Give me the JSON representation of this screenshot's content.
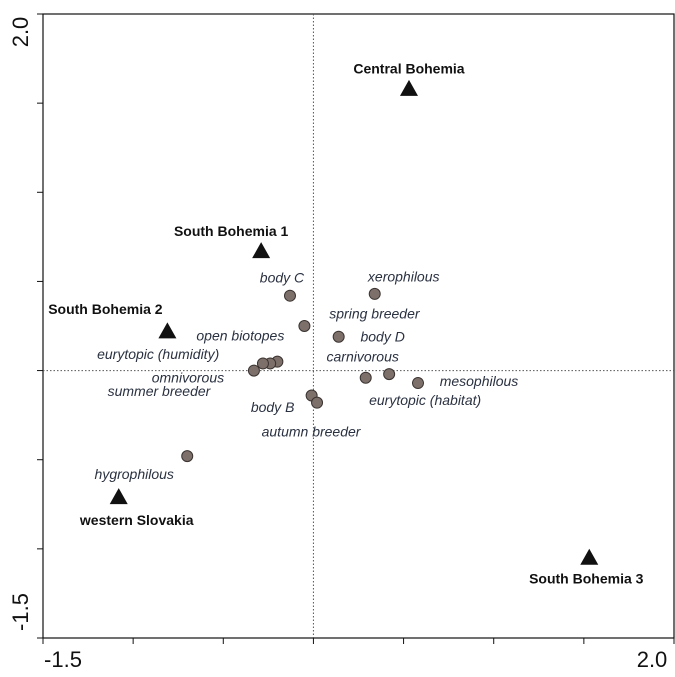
{
  "chart_data": {
    "type": "scatter",
    "xlim": [
      -1.5,
      2
    ],
    "ylim": [
      -1.5,
      2
    ],
    "xticks": [
      -1.5,
      {
        "value": 2,
        "label": "2.0"
      }
    ],
    "yticks": [
      -1.5,
      {
        "value": 2,
        "label": "2.0"
      }
    ],
    "xminor": [
      -1,
      -0.5,
      0,
      0.5,
      1,
      1.5
    ],
    "yminor": [
      -1,
      -0.5,
      0,
      0.5,
      1,
      1.5
    ],
    "zero_lines": true,
    "series": [
      {
        "marker": "circle",
        "color": "#7d706a",
        "x": [
          -0.13,
          0.34,
          -0.05,
          0.14,
          -0.2,
          -0.24,
          0.29,
          -0.33,
          -0.28,
          0.58,
          0.42,
          -0.01,
          0.02,
          -0.7
        ],
        "y": [
          0.42,
          0.43,
          0.25,
          0.19,
          0.05,
          0.04,
          -0.04,
          0.0,
          0.04,
          -0.07,
          -0.02,
          -0.14,
          -0.18,
          -0.48
        ],
        "labels": [
          "body C",
          "xerophilous",
          "spring breeder",
          "body D",
          "open biotopes",
          "eurytopic (humidity)",
          "carnivorous",
          "omnivorous",
          "summer breeder",
          "mesophilous",
          "eurytopic (habitat)",
          "body B",
          "autumn breeder",
          "hygrophilous"
        ]
      },
      {
        "marker": "triangle",
        "color": "#111111",
        "x": [
          0.53,
          -0.29,
          -0.81,
          -1.08,
          1.53
        ],
        "y": [
          1.58,
          0.67,
          0.22,
          -0.71,
          -1.05
        ],
        "labels": [
          "Central Bohemia",
          "South  Bohemia 1",
          "South  Bohemia 2",
          "western Slovakia",
          "South  Bohemia 3"
        ]
      }
    ]
  }
}
